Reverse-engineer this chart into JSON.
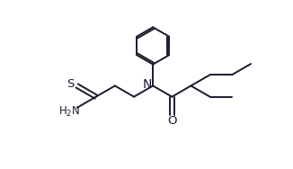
{
  "bg_color": "#ffffff",
  "line_color": "#1a1a2e",
  "line_width": 1.4,
  "font_size": 8.5,
  "fig_width": 3.26,
  "fig_height": 1.88,
  "dpi": 100,
  "xlim": [
    0,
    10.5
  ],
  "ylim": [
    0,
    6.5
  ]
}
